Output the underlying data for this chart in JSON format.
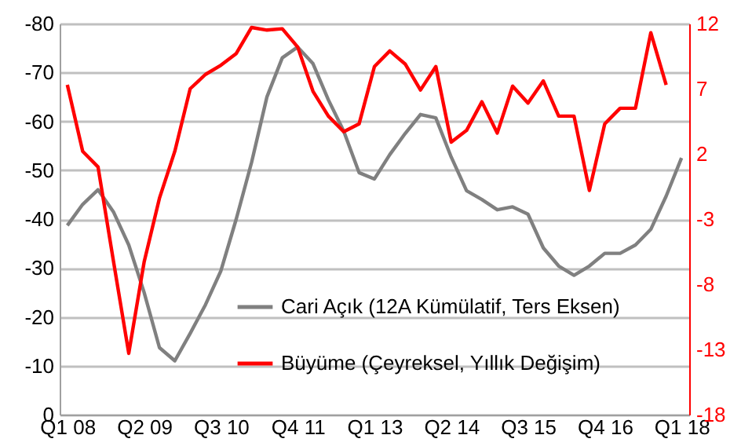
{
  "chart_data": {
    "type": "line",
    "categories": [
      "Q1 08",
      null,
      null,
      null,
      null,
      "Q2 09",
      null,
      null,
      null,
      null,
      "Q3 10",
      null,
      null,
      null,
      null,
      "Q4 11",
      null,
      null,
      null,
      null,
      "Q1 13",
      null,
      null,
      null,
      null,
      "Q2 14",
      null,
      null,
      null,
      null,
      "Q3 15",
      null,
      null,
      null,
      null,
      "Q4 16",
      null,
      null,
      null,
      null,
      "Q1 18"
    ],
    "series": [
      {
        "name": "Cari Açık (12A Kümülatif, Ters Eksen)",
        "color": "#808080",
        "values": [
          -38.7,
          -43,
          -46,
          -41.5,
          -34.7,
          -25,
          -13.7,
          -11,
          -16.6,
          -22.5,
          -29.4,
          -40,
          -51.6,
          -65,
          -73,
          -75.2,
          -71.8,
          -64.4,
          -58,
          -49.5,
          -48.2,
          -53.2,
          -57.5,
          -61.4,
          -60.7,
          -52.7,
          -45.8,
          -44,
          -41.9,
          -42.5,
          -41,
          -34.1,
          -30.4,
          -28.5,
          -30.4,
          -33,
          -33,
          -34.7,
          -37.9,
          -44.7,
          -52.5
        ]
      },
      {
        "name": "Büyüme (Çeyreksel, Yıllık Değişim)",
        "color": "#ff0000",
        "axis": "y2",
        "values": [
          7.3,
          2.2,
          1.0,
          -6.2,
          -13.3,
          -6.3,
          -1.4,
          2.2,
          7.0,
          8.1,
          8.8,
          9.7,
          11.7,
          11.5,
          11.6,
          10.2,
          6.8,
          4.9,
          3.7,
          4.3,
          8.7,
          9.9,
          8.9,
          6.9,
          8.7,
          2.9,
          3.8,
          6.0,
          3.6,
          7.2,
          5.9,
          7.6,
          4.9,
          4.9,
          -0.8,
          4.3,
          5.5,
          5.5,
          11.3,
          7.3,
          null
        ]
      }
    ],
    "ylim": [
      0,
      -80
    ],
    "yticks": [
      0,
      -10,
      -20,
      -30,
      -40,
      -50,
      -60,
      -70,
      -80
    ],
    "y2lim": [
      -18,
      12
    ],
    "y2ticks": [
      12,
      7,
      2,
      -3,
      -8,
      -13,
      -18
    ],
    "grid": "y",
    "legend": "bottom"
  }
}
